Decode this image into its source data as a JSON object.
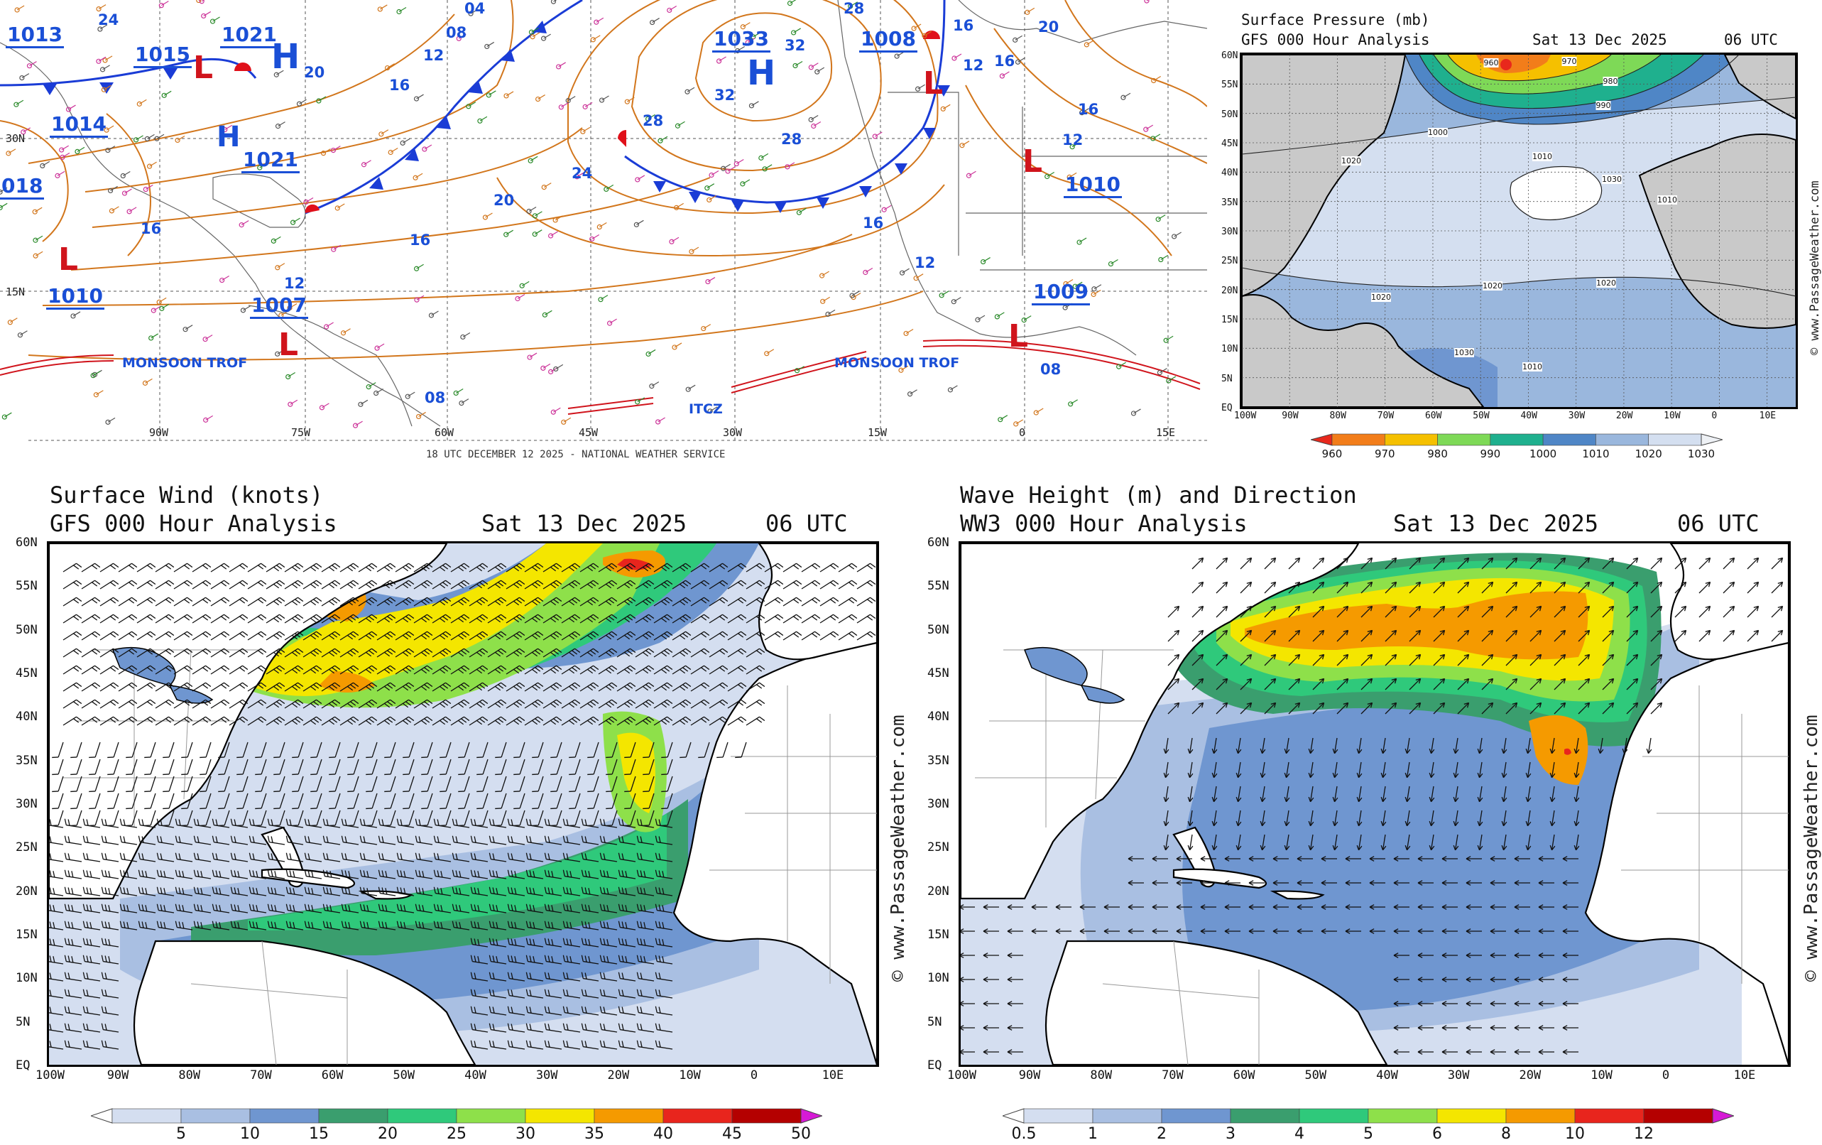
{
  "surface_analysis": {
    "footer": "18 UTC DECEMBER 12 2025 - NATIONAL WEATHER SERVICE",
    "pressure_centers": [
      {
        "label": "1013"
      },
      {
        "label": "1015"
      },
      {
        "label": "1021"
      },
      {
        "label": "1014"
      },
      {
        "label": "1021"
      },
      {
        "label": "018"
      },
      {
        "label": "1010"
      },
      {
        "label": "1007"
      },
      {
        "label": "1033"
      },
      {
        "label": "1008"
      },
      {
        "label": "1010"
      },
      {
        "label": "1009"
      }
    ],
    "isobar_labels": [
      "24",
      "20",
      "16",
      "12",
      "08",
      "04",
      "16",
      "20",
      "28",
      "32",
      "28",
      "24",
      "16",
      "12",
      "12",
      "16",
      "20",
      "16",
      "08",
      "16",
      "08",
      "28",
      "20",
      "16",
      "12",
      "32",
      "16",
      "12"
    ],
    "highs": [
      "H",
      "H",
      "H"
    ],
    "lows": [
      "L",
      "L",
      "L",
      "L",
      "L",
      "L"
    ],
    "features": {
      "monsoon_trof_1": "MONSOON TROF",
      "monsoon_trof_2": "MONSOON TROF",
      "itcz": "ITCZ"
    },
    "lon_labels": [
      "90W",
      "75W",
      "60W",
      "45W",
      "30W",
      "15W",
      "0",
      "15E"
    ],
    "lat_labels": [
      "30N",
      "15N"
    ]
  },
  "pressure_panel": {
    "title_line1": "Surface Pressure (mb)",
    "title_line2": "GFS 000 Hour Analysis",
    "date": "Sat 13 Dec 2025",
    "time": "06 UTC",
    "credit": "© www.PassageWeather.com",
    "lat_labels": [
      "60N",
      "55N",
      "50N",
      "45N",
      "40N",
      "35N",
      "30N",
      "25N",
      "20N",
      "15N",
      "10N",
      "5N",
      "EQ"
    ],
    "lon_labels": [
      "100W",
      "90W",
      "80W",
      "70W",
      "60W",
      "50W",
      "40W",
      "30W",
      "20W",
      "10W",
      "0",
      "10E"
    ],
    "contour_labels": [
      "960",
      "970",
      "980",
      "990",
      "1000",
      "1010",
      "1020",
      "1030",
      "1020",
      "1010",
      "1020",
      "1030",
      "1020",
      "1010"
    ],
    "colorbar": {
      "colors": [
        "#e8281c",
        "#f27d1a",
        "#f5c000",
        "#7ed957",
        "#1fb08e",
        "#4f86c6",
        "#9ab7dd",
        "#d4dff0",
        "#eef1f5"
      ],
      "labels": [
        "960",
        "970",
        "980",
        "990",
        "1000",
        "1010",
        "1020",
        "1030"
      ]
    }
  },
  "wind_panel": {
    "title_line1": "Surface Wind (knots)",
    "title_line2": "GFS 000 Hour Analysis",
    "date": "Sat 13 Dec 2025",
    "time": "06 UTC",
    "credit": "© www.PassageWeather.com",
    "lat_labels": [
      "60N",
      "55N",
      "50N",
      "45N",
      "40N",
      "35N",
      "30N",
      "25N",
      "20N",
      "15N",
      "10N",
      "5N",
      "EQ"
    ],
    "lon_labels": [
      "100W",
      "90W",
      "80W",
      "70W",
      "60W",
      "50W",
      "40W",
      "30W",
      "20W",
      "10W",
      "0",
      "10E"
    ],
    "colorbar": {
      "colors": [
        "#ffffff",
        "#d4def0",
        "#a9bfe2",
        "#6f96d0",
        "#3a9e6e",
        "#2fc97b",
        "#8ee04a",
        "#f4e600",
        "#f59a00",
        "#e8251d",
        "#b40000",
        "#d61ad6"
      ],
      "labels": [
        "5",
        "10",
        "15",
        "20",
        "25",
        "30",
        "35",
        "40",
        "45",
        "50"
      ]
    }
  },
  "wave_panel": {
    "title_line1": "Wave Height (m) and Direction",
    "title_line2": "WW3 000 Hour Analysis",
    "date": "Sat 13 Dec 2025",
    "time": "06 UTC",
    "credit": "© www.PassageWeather.com",
    "lat_labels": [
      "60N",
      "55N",
      "50N",
      "45N",
      "40N",
      "35N",
      "30N",
      "25N",
      "20N",
      "15N",
      "10N",
      "5N",
      "EQ"
    ],
    "lon_labels": [
      "100W",
      "90W",
      "80W",
      "70W",
      "60W",
      "50W",
      "40W",
      "30W",
      "20W",
      "10W",
      "0",
      "10E"
    ],
    "colorbar": {
      "colors": [
        "#ffffff",
        "#d4def0",
        "#a9bfe2",
        "#6f96d0",
        "#3a9e6e",
        "#2fc97b",
        "#8ee04a",
        "#f4e600",
        "#f59a00",
        "#e8251d",
        "#b40000",
        "#d61ad6"
      ],
      "labels": [
        "0.5",
        "1",
        "2",
        "3",
        "4",
        "5",
        "6",
        "8",
        "10",
        "12"
      ]
    }
  }
}
